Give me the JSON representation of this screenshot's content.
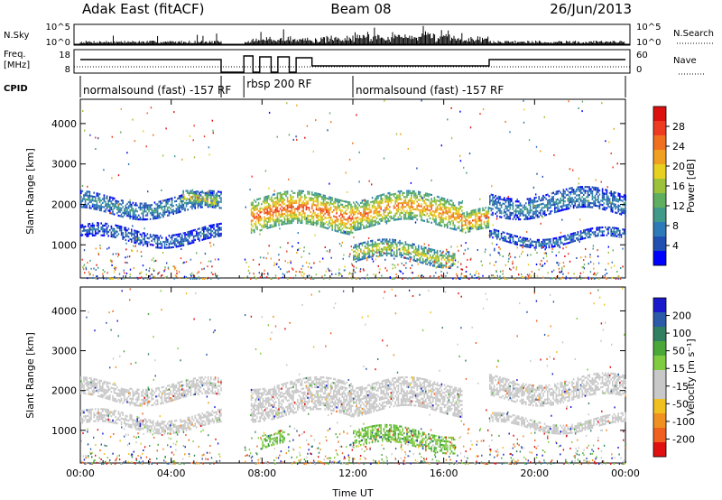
{
  "header": {
    "station": "Adak East (fitACF)",
    "beam": "Beam 08",
    "date": "26/Jun/2013"
  },
  "top_panels": {
    "nsky_label": "N.Sky",
    "nsearch_label": "N.Search",
    "freq_label_1": "Freq.",
    "freq_label_2": "[MHz]",
    "nave_label": "Nave",
    "cpid_label": "CPID",
    "nsky_ticks": [
      "10^5",
      "10^0"
    ],
    "nsearch_ticks": [
      "10^5",
      "10^0"
    ],
    "freq_ticks": [
      "18",
      "8"
    ],
    "nave_ticks": [
      "60",
      "0"
    ]
  },
  "modes": [
    {
      "label": "normalsound (fast) -157 RF",
      "start": 0,
      "end": 6.2
    },
    {
      "label": "rbsp 200 RF",
      "start": 7.2,
      "end": 12.0
    },
    {
      "label": "normalsound (fast) -157 RF",
      "start": 12.0,
      "end": 24
    }
  ],
  "chart_data": [
    {
      "type": "heatmap",
      "name": "power-panel",
      "xlabel": "Time UT",
      "ylabel": "Slant Range [km]",
      "xlim": [
        0,
        24
      ],
      "ylim": [
        180,
        4600
      ],
      "x_ticks": [
        0,
        4,
        8,
        12,
        16,
        20,
        24
      ],
      "x_tick_labels": [
        "00:00",
        "04:00",
        "08:00",
        "12:00",
        "16:00",
        "20:00",
        "00:00"
      ],
      "y_ticks": [
        1000,
        2000,
        3000,
        4000
      ],
      "y_tick_labels": [
        "1000",
        "2000",
        "3000",
        "4000"
      ],
      "colorbar": {
        "label": "Power [dB]",
        "ticks": [
          "4",
          "8",
          "12",
          "16",
          "20",
          "24",
          "28"
        ],
        "colors": [
          "#0000ff",
          "#1f4fb0",
          "#2e7ab8",
          "#3f9a8a",
          "#5fae5f",
          "#9bc23a",
          "#e8d020",
          "#f0a020",
          "#f07020",
          "#ee3b20",
          "#dd1010"
        ]
      },
      "data_gaps": [
        [
          6.2,
          7.2
        ]
      ],
      "echo_bands": [
        {
          "t0": 0,
          "t1": 6.2,
          "r0": 1100,
          "r1": 1400,
          "dB": 7
        },
        {
          "t0": 0,
          "t1": 6.2,
          "r0": 1800,
          "r1": 2200,
          "dB": 10
        },
        {
          "t0": 4.5,
          "t1": 6.0,
          "r0": 1900,
          "r1": 2200,
          "dB": 22
        },
        {
          "t0": 7.5,
          "t1": 12,
          "r0": 1400,
          "r1": 2200,
          "dB": 26
        },
        {
          "t0": 12,
          "t1": 16.8,
          "r0": 1500,
          "r1": 2200,
          "dB": 24
        },
        {
          "t0": 12,
          "t1": 16.5,
          "r0": 600,
          "r1": 1000,
          "dB": 18
        },
        {
          "t0": 16.8,
          "t1": 18,
          "r0": 1300,
          "r1": 1800,
          "dB": 25
        },
        {
          "t0": 18,
          "t1": 24,
          "r0": 1100,
          "r1": 1300,
          "dB": 8
        },
        {
          "t0": 18,
          "t1": 24,
          "r0": 1800,
          "r1": 2300,
          "dB": 9
        }
      ]
    },
    {
      "type": "heatmap",
      "name": "velocity-panel",
      "xlabel": "Time UT",
      "ylabel": "Slant Range [km]",
      "xlim": [
        0,
        24
      ],
      "ylim": [
        180,
        4600
      ],
      "x_ticks": [
        0,
        4,
        8,
        12,
        16,
        20,
        24
      ],
      "x_tick_labels": [
        "00:00",
        "04:00",
        "08:00",
        "12:00",
        "16:00",
        "20:00",
        "00:00"
      ],
      "y_ticks": [
        1000,
        2000,
        3000,
        4000
      ],
      "y_tick_labels": [
        "1000",
        "2000",
        "3000",
        "4000"
      ],
      "colorbar": {
        "label": "Velocity [m s⁻¹]",
        "ticks": [
          "200",
          "100",
          "50",
          "15",
          "-15",
          "-50",
          "-100",
          "-200"
        ],
        "colors": [
          "#1a1acc",
          "#2a5aa8",
          "#2e8060",
          "#4aa838",
          "#80cc40",
          "#c8c8c8",
          "#c8c8c8",
          "#f0c020",
          "#f09020",
          "#f06020",
          "#e01010"
        ]
      },
      "data_gaps": [
        [
          6.2,
          7.2
        ]
      ],
      "echo_bands": [
        {
          "t0": 0,
          "t1": 6.2,
          "r0": 1100,
          "r1": 1400,
          "v": 0
        },
        {
          "t0": 0,
          "t1": 6.2,
          "r0": 1800,
          "r1": 2200,
          "v": 0
        },
        {
          "t0": 7.5,
          "t1": 12,
          "r0": 1400,
          "r1": 2200,
          "v": 0
        },
        {
          "t0": 8,
          "t1": 9,
          "r0": 600,
          "r1": 900,
          "v": 60
        },
        {
          "t0": 12,
          "t1": 16.8,
          "r0": 1500,
          "r1": 2200,
          "v": 0
        },
        {
          "t0": 12,
          "t1": 16.5,
          "r0": 600,
          "r1": 1000,
          "v": 60
        },
        {
          "t0": 18,
          "t1": 24,
          "r0": 1100,
          "r1": 1300,
          "v": 0
        },
        {
          "t0": 18,
          "t1": 24,
          "r0": 1800,
          "r1": 2300,
          "v": 0
        }
      ]
    }
  ]
}
